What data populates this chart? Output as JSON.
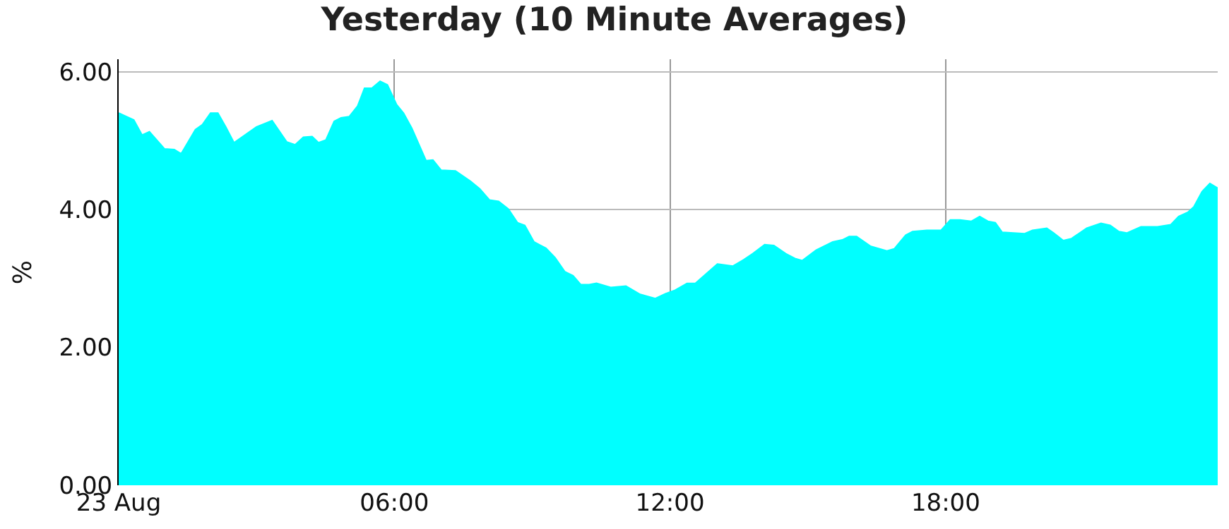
{
  "chart_data": {
    "type": "area",
    "title": "Yesterday (10 Minute Averages)",
    "ylabel": "%",
    "x": [
      0,
      0.33,
      0.51,
      0.67,
      1.0,
      1.21,
      1.36,
      1.67,
      1.82,
      2.0,
      2.16,
      2.33,
      2.51,
      3.0,
      3.34,
      3.66,
      3.84,
      4.02,
      4.21,
      4.35,
      4.51,
      4.69,
      4.84,
      5.02,
      5.2,
      5.35,
      5.51,
      5.69,
      5.85,
      6.05,
      6.2,
      6.38,
      6.69,
      6.84,
      7.02,
      7.33,
      7.66,
      7.86,
      8.07,
      8.27,
      8.48,
      8.68,
      8.84,
      9.04,
      9.3,
      9.5,
      9.71,
      9.89,
      10.06,
      10.24,
      10.4,
      10.71,
      11.04,
      11.35,
      11.68,
      11.9,
      12.11,
      12.37,
      12.55,
      13.03,
      13.37,
      13.6,
      13.8,
      14.06,
      14.26,
      14.52,
      14.72,
      14.88,
      15.18,
      15.54,
      15.75,
      15.9,
      16.06,
      16.36,
      16.72,
      16.88,
      17.13,
      17.28,
      17.59,
      17.9,
      18.1,
      18.31,
      18.56,
      18.74,
      18.92,
      19.08,
      19.23,
      19.72,
      19.89,
      20.2,
      20.35,
      20.56,
      20.74,
      21.07,
      21.38,
      21.58,
      21.77,
      21.94,
      22.25,
      22.61,
      22.9,
      23.07,
      23.27,
      23.4,
      23.58,
      23.75,
      23.92
    ],
    "series": [
      {
        "color": "#00ffff",
        "values": [
          5.4,
          5.3,
          5.08,
          5.13,
          4.88,
          4.87,
          4.81,
          5.16,
          5.23,
          5.4,
          5.4,
          5.2,
          4.97,
          5.2,
          5.29,
          4.98,
          4.94,
          5.05,
          5.06,
          4.97,
          5.01,
          5.28,
          5.33,
          5.35,
          5.5,
          5.76,
          5.76,
          5.86,
          5.81,
          5.52,
          5.4,
          5.18,
          4.71,
          4.72,
          4.57,
          4.56,
          4.41,
          4.3,
          4.14,
          4.12,
          4.01,
          3.81,
          3.77,
          3.53,
          3.44,
          3.3,
          3.1,
          3.04,
          2.91,
          2.91,
          2.93,
          2.87,
          2.89,
          2.77,
          2.71,
          2.78,
          2.83,
          2.93,
          2.93,
          3.21,
          3.18,
          3.27,
          3.36,
          3.49,
          3.48,
          3.36,
          3.29,
          3.26,
          3.41,
          3.53,
          3.56,
          3.61,
          3.61,
          3.47,
          3.4,
          3.43,
          3.63,
          3.68,
          3.7,
          3.7,
          3.85,
          3.85,
          3.83,
          3.9,
          3.83,
          3.81,
          3.67,
          3.65,
          3.7,
          3.73,
          3.66,
          3.55,
          3.58,
          3.73,
          3.8,
          3.77,
          3.68,
          3.66,
          3.75,
          3.75,
          3.78,
          3.9,
          3.96,
          4.04,
          4.26,
          4.38,
          4.31
        ]
      }
    ],
    "xlim": [
      0,
      23.92
    ],
    "xticks": [
      {
        "value": 0,
        "label": "23 Aug"
      },
      {
        "value": 6,
        "label": "06:00"
      },
      {
        "value": 12,
        "label": "12:00"
      },
      {
        "value": 18,
        "label": "18:00"
      }
    ],
    "ylim": [
      0,
      6.18
    ],
    "yticks": [
      {
        "value": 0,
        "label": "0.00"
      },
      {
        "value": 2,
        "label": "2.00"
      },
      {
        "value": 4,
        "label": "4.00"
      },
      {
        "value": 6,
        "label": "6.00"
      }
    ],
    "grid": true,
    "marker": "none"
  }
}
